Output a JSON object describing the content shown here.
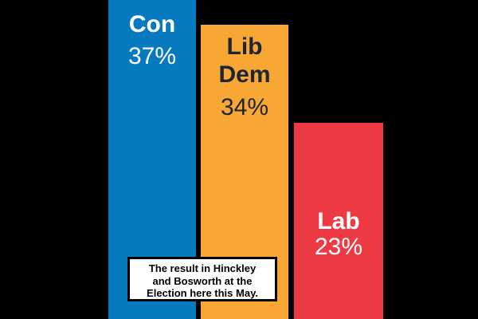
{
  "background_color": "#000000",
  "chart_data": {
    "type": "bar",
    "orientation": "vertical",
    "title": "",
    "categories": [
      "Con",
      "Lib Dem",
      "Lab"
    ],
    "values": [
      37,
      34,
      23
    ],
    "value_unit": "%",
    "ylim": [
      0,
      37
    ],
    "grid": false,
    "legend": false,
    "bars": [
      {
        "name": "Con",
        "label_lines": [
          "Con"
        ],
        "value": 37,
        "value_label": "37%",
        "color": "#0779BE",
        "text_color": "#FFFFFF"
      },
      {
        "name": "Lib Dem",
        "label_lines": [
          "Lib",
          "Dem"
        ],
        "value": 34,
        "value_label": "34%",
        "color": "#F8A634",
        "text_color": "#1E2532"
      },
      {
        "name": "Lab",
        "label_lines": [
          "Lab"
        ],
        "value": 23,
        "value_label": "23%",
        "color": "#EE3A43",
        "text_color": "#FFFFFF"
      }
    ],
    "annotation": {
      "lines": [
        "The result in Hinckley",
        "and Bosworth at the",
        "Election here this May."
      ],
      "text": "The result in Hinckley and Bosworth at the Election here this May.",
      "background": "#FFFFFF",
      "border_color": "#000000",
      "text_color": "#000000"
    }
  }
}
